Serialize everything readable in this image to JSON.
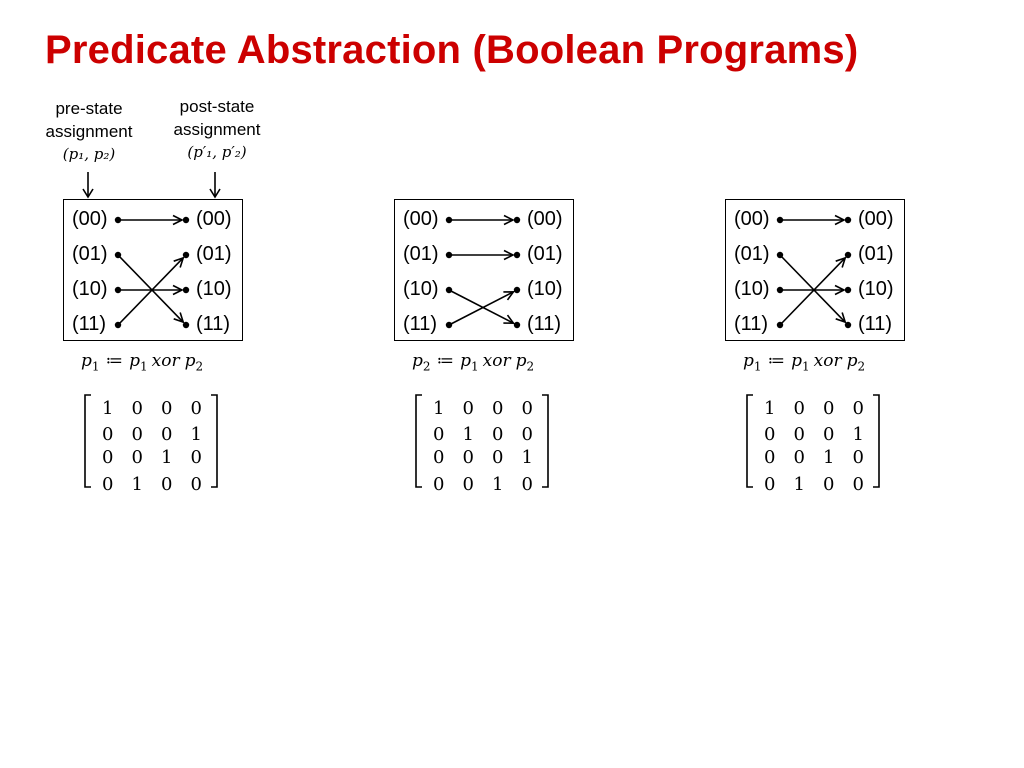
{
  "title": "Predicate Abstraction (Boolean Programs)",
  "colors": {
    "title": "#cc0000",
    "ink": "#000000"
  },
  "labels": {
    "pre": {
      "line1": "pre-state",
      "line2": "assignment",
      "math": "(p₁, p₂)"
    },
    "post": {
      "line1": "post-state",
      "line2": "assignment",
      "math": "(p′₁, p′₂)"
    }
  },
  "states": [
    "(00)",
    "(01)",
    "(10)",
    "(11)"
  ],
  "panels": [
    {
      "formula": {
        "lhs": "p",
        "lhs_sub": "1",
        "op": "≔",
        "a": "p",
        "a_sub": "1",
        "mid": "xor",
        "b": "p",
        "b_sub": "2"
      },
      "transitions": [
        [
          0,
          0
        ],
        [
          1,
          3
        ],
        [
          2,
          2
        ],
        [
          3,
          1
        ]
      ],
      "matrix": [
        [
          "1",
          "0",
          "0",
          "0"
        ],
        [
          "0",
          "0",
          "0",
          "1"
        ],
        [
          "0",
          "0",
          "1",
          "0"
        ],
        [
          "0",
          "1",
          "0",
          "0"
        ]
      ]
    },
    {
      "formula": {
        "lhs": "p",
        "lhs_sub": "2",
        "op": "≔",
        "a": "p",
        "a_sub": "1",
        "mid": "xor",
        "b": "p",
        "b_sub": "2"
      },
      "transitions": [
        [
          0,
          0
        ],
        [
          1,
          1
        ],
        [
          2,
          3
        ],
        [
          3,
          2
        ]
      ],
      "matrix": [
        [
          "1",
          "0",
          "0",
          "0"
        ],
        [
          "0",
          "1",
          "0",
          "0"
        ],
        [
          "0",
          "0",
          "0",
          "1"
        ],
        [
          "0",
          "0",
          "1",
          "0"
        ]
      ]
    },
    {
      "formula": {
        "lhs": "p",
        "lhs_sub": "1",
        "op": "≔",
        "a": "p",
        "a_sub": "1",
        "mid": "xor",
        "b": "p",
        "b_sub": "2"
      },
      "transitions": [
        [
          0,
          0
        ],
        [
          1,
          3
        ],
        [
          2,
          2
        ],
        [
          3,
          1
        ]
      ],
      "matrix": [
        [
          "1",
          "0",
          "0",
          "0"
        ],
        [
          "0",
          "0",
          "0",
          "1"
        ],
        [
          "0",
          "0",
          "1",
          "0"
        ],
        [
          "0",
          "1",
          "0",
          "0"
        ]
      ]
    }
  ]
}
